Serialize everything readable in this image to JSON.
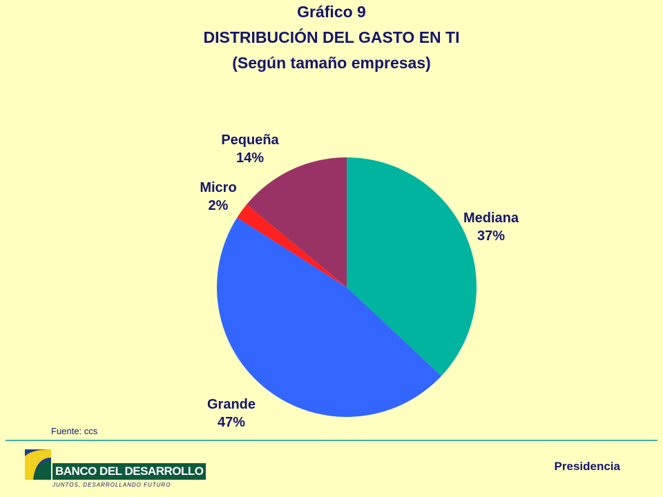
{
  "header": {
    "title_line1": "Gráfico 9",
    "title_line2": "DISTRIBUCIÓN DEL GASTO EN TI",
    "title_line3": "(Según tamaño empresas)"
  },
  "chart_data": {
    "type": "pie",
    "title": "DISTRIBUCIÓN DEL GASTO EN TI",
    "subtitle": "(Según tamaño empresas)",
    "slices": [
      {
        "label": "Mediana",
        "value": 37,
        "value_label": "37%",
        "color": "#00B4A0"
      },
      {
        "label": "Grande",
        "value": 47,
        "value_label": "47%",
        "color": "#3366FF"
      },
      {
        "label": "Micro",
        "value": 2,
        "value_label": "2%",
        "color": "#FF2020"
      },
      {
        "label": "Pequeña",
        "value": 14,
        "value_label": "14%",
        "color": "#993366"
      }
    ],
    "start_angle_deg": 0,
    "direction": "clockwise"
  },
  "footer": {
    "source": "Fuente: ccs",
    "logo_name": "BANCO DEL DESARROLLO",
    "logo_tagline": "JUNTOS, DESARROLLANDO FUTURO",
    "department": "Presidencia"
  },
  "colors": {
    "background": "#FFFFC0",
    "text": "#14146E",
    "rule": "#3CB4A0",
    "logo_green": "#0E5A3C",
    "logo_yellow": "#F0D020",
    "logo_blue": "#1E3C8C"
  }
}
